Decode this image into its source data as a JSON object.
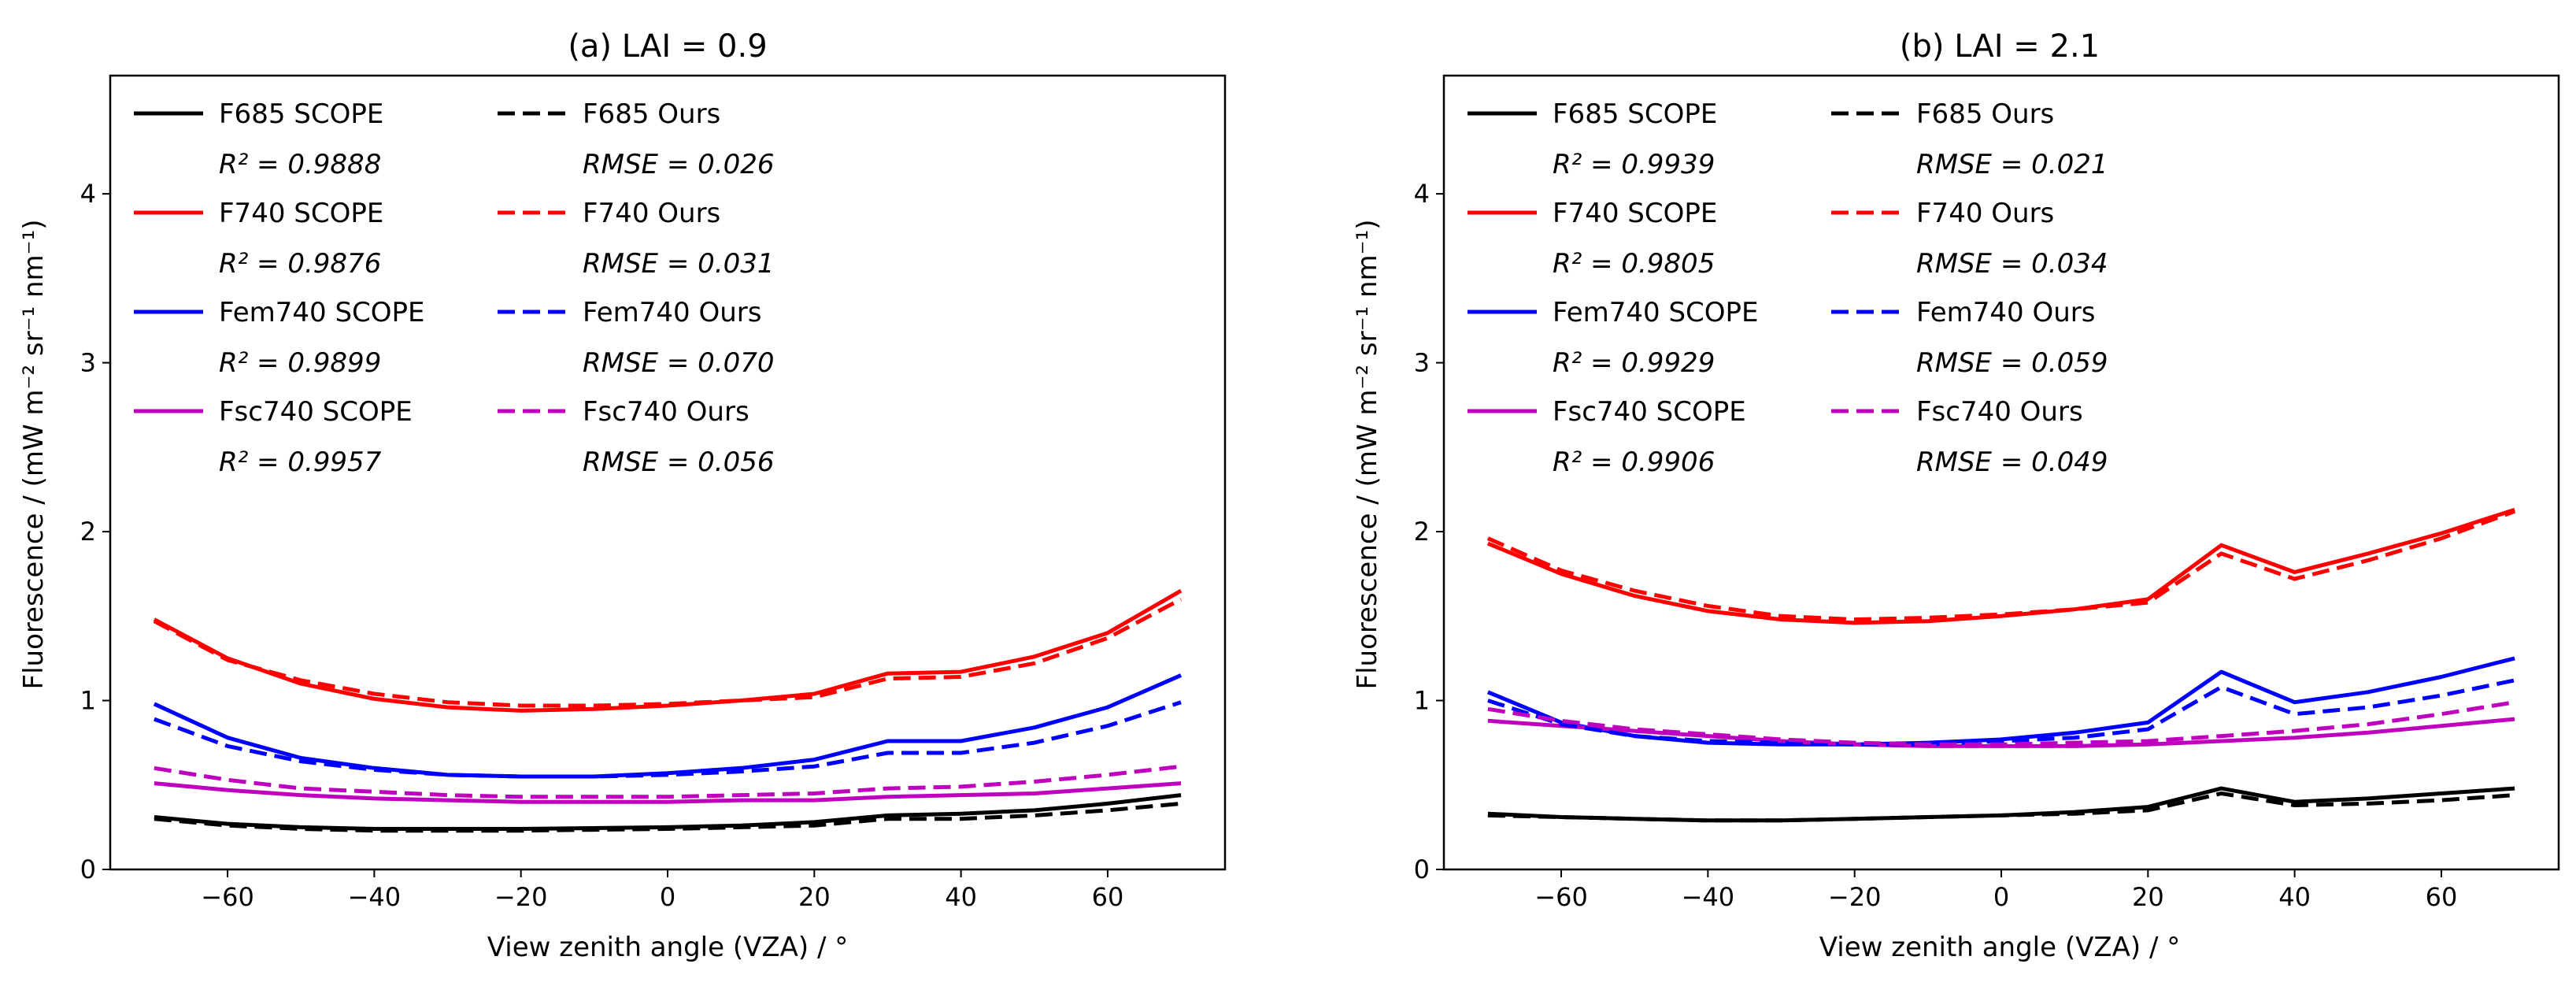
{
  "chart_data": [
    {
      "type": "line",
      "title": "(a) LAI = 0.9",
      "xlabel": "View zenith angle (VZA) / °",
      "ylabel": "Fluorescence / (mW m⁻² sr⁻¹ nm⁻¹)",
      "xlim": [
        -76,
        76
      ],
      "ylim": [
        0,
        4.7
      ],
      "xticks": [
        -60,
        -40,
        -20,
        0,
        20,
        40,
        60
      ],
      "yticks": [
        0,
        1,
        2,
        3,
        4
      ],
      "x": [
        -70,
        -60,
        -50,
        -40,
        -30,
        -20,
        -10,
        0,
        10,
        20,
        30,
        40,
        50,
        60,
        70
      ],
      "series": [
        {
          "name": "F685 SCOPE",
          "color": "#000000",
          "dash": "solid",
          "values": [
            0.31,
            0.27,
            0.25,
            0.24,
            0.24,
            0.24,
            0.245,
            0.25,
            0.26,
            0.28,
            0.32,
            0.33,
            0.35,
            0.39,
            0.44
          ]
        },
        {
          "name": "F740 SCOPE",
          "color": "#ff0000",
          "dash": "solid",
          "values": [
            1.48,
            1.25,
            1.1,
            1.01,
            0.96,
            0.94,
            0.95,
            0.97,
            1.0,
            1.04,
            1.16,
            1.17,
            1.26,
            1.4,
            1.65
          ]
        },
        {
          "name": "Fem740 SCOPE",
          "color": "#0000ff",
          "dash": "solid",
          "values": [
            0.98,
            0.78,
            0.66,
            0.6,
            0.56,
            0.55,
            0.55,
            0.57,
            0.6,
            0.65,
            0.76,
            0.76,
            0.84,
            0.96,
            1.15
          ]
        },
        {
          "name": "Fsc740 SCOPE",
          "color": "#bf00bf",
          "dash": "solid",
          "values": [
            0.51,
            0.47,
            0.44,
            0.42,
            0.41,
            0.4,
            0.4,
            0.4,
            0.41,
            0.41,
            0.43,
            0.44,
            0.45,
            0.48,
            0.51
          ]
        },
        {
          "name": "F685 Ours",
          "color": "#000000",
          "dash": "dashed",
          "values": [
            0.3,
            0.26,
            0.24,
            0.23,
            0.23,
            0.23,
            0.235,
            0.24,
            0.25,
            0.26,
            0.3,
            0.3,
            0.32,
            0.35,
            0.39
          ]
        },
        {
          "name": "F740 Ours",
          "color": "#ff0000",
          "dash": "dashed",
          "values": [
            1.47,
            1.24,
            1.12,
            1.04,
            0.99,
            0.97,
            0.97,
            0.98,
            1.0,
            1.02,
            1.13,
            1.14,
            1.22,
            1.37,
            1.6
          ]
        },
        {
          "name": "Fem740 Ours",
          "color": "#0000ff",
          "dash": "dashed",
          "values": [
            0.89,
            0.73,
            0.64,
            0.59,
            0.56,
            0.55,
            0.55,
            0.56,
            0.58,
            0.61,
            0.69,
            0.69,
            0.75,
            0.85,
            0.99
          ]
        },
        {
          "name": "Fsc740 Ours",
          "color": "#bf00bf",
          "dash": "dashed",
          "values": [
            0.6,
            0.53,
            0.48,
            0.46,
            0.44,
            0.43,
            0.43,
            0.43,
            0.44,
            0.45,
            0.48,
            0.49,
            0.52,
            0.56,
            0.61
          ]
        }
      ],
      "legend": {
        "placement": "upper-left",
        "left_column": [
          {
            "label": "F685 SCOPE",
            "stat": "R² = 0.9888"
          },
          {
            "label": "F740 SCOPE",
            "stat": "R² = 0.9876"
          },
          {
            "label": "Fem740 SCOPE",
            "stat": "R² = 0.9899"
          },
          {
            "label": "Fsc740 SCOPE",
            "stat": "R² = 0.9957"
          }
        ],
        "right_column": [
          {
            "label": "F685 Ours",
            "stat": "RMSE = 0.026"
          },
          {
            "label": "F740 Ours",
            "stat": "RMSE = 0.031"
          },
          {
            "label": "Fem740 Ours",
            "stat": "RMSE = 0.070"
          },
          {
            "label": "Fsc740 Ours",
            "stat": "RMSE = 0.056"
          }
        ]
      }
    },
    {
      "type": "line",
      "title": "(b) LAI = 2.1",
      "xlabel": "View zenith angle (VZA) / °",
      "ylabel": "Fluorescence / (mW m⁻² sr⁻¹ nm⁻¹)",
      "xlim": [
        -76,
        76
      ],
      "ylim": [
        0,
        4.7
      ],
      "xticks": [
        -60,
        -40,
        -20,
        0,
        20,
        40,
        60
      ],
      "yticks": [
        0,
        1,
        2,
        3,
        4
      ],
      "x": [
        -70,
        -60,
        -50,
        -40,
        -30,
        -20,
        -10,
        0,
        10,
        20,
        30,
        40,
        50,
        60,
        70
      ],
      "series": [
        {
          "name": "F685 SCOPE",
          "color": "#000000",
          "dash": "solid",
          "values": [
            0.33,
            0.31,
            0.3,
            0.29,
            0.29,
            0.3,
            0.31,
            0.32,
            0.34,
            0.37,
            0.48,
            0.4,
            0.42,
            0.45,
            0.48
          ]
        },
        {
          "name": "F740 SCOPE",
          "color": "#ff0000",
          "dash": "solid",
          "values": [
            1.93,
            1.75,
            1.62,
            1.53,
            1.48,
            1.46,
            1.47,
            1.5,
            1.54,
            1.6,
            1.92,
            1.76,
            1.87,
            1.99,
            2.13
          ]
        },
        {
          "name": "Fem740 SCOPE",
          "color": "#0000ff",
          "dash": "solid",
          "values": [
            1.05,
            0.87,
            0.79,
            0.75,
            0.74,
            0.74,
            0.75,
            0.77,
            0.81,
            0.87,
            1.17,
            0.99,
            1.05,
            1.14,
            1.25
          ]
        },
        {
          "name": "Fsc740 SCOPE",
          "color": "#bf00bf",
          "dash": "solid",
          "values": [
            0.88,
            0.85,
            0.82,
            0.79,
            0.76,
            0.74,
            0.73,
            0.73,
            0.73,
            0.74,
            0.76,
            0.78,
            0.81,
            0.85,
            0.89
          ]
        },
        {
          "name": "F685 Ours",
          "color": "#000000",
          "dash": "dashed",
          "values": [
            0.32,
            0.31,
            0.3,
            0.29,
            0.29,
            0.3,
            0.31,
            0.32,
            0.33,
            0.35,
            0.45,
            0.38,
            0.39,
            0.41,
            0.44
          ]
        },
        {
          "name": "F740 Ours",
          "color": "#ff0000",
          "dash": "dashed",
          "values": [
            1.96,
            1.77,
            1.65,
            1.56,
            1.5,
            1.48,
            1.49,
            1.51,
            1.54,
            1.58,
            1.87,
            1.72,
            1.83,
            1.96,
            2.12
          ]
        },
        {
          "name": "Fem740 Ours",
          "color": "#0000ff",
          "dash": "dashed",
          "values": [
            1.0,
            0.86,
            0.79,
            0.76,
            0.75,
            0.74,
            0.74,
            0.76,
            0.78,
            0.83,
            1.08,
            0.92,
            0.96,
            1.03,
            1.12
          ]
        },
        {
          "name": "Fsc740 Ours",
          "color": "#bf00bf",
          "dash": "dashed",
          "values": [
            0.95,
            0.88,
            0.83,
            0.8,
            0.77,
            0.75,
            0.74,
            0.74,
            0.75,
            0.76,
            0.79,
            0.82,
            0.86,
            0.92,
            0.99
          ]
        }
      ],
      "legend": {
        "placement": "upper-left",
        "left_column": [
          {
            "label": "F685 SCOPE",
            "stat": "R² = 0.9939"
          },
          {
            "label": "F740 SCOPE",
            "stat": "R² = 0.9805"
          },
          {
            "label": "Fem740 SCOPE",
            "stat": "R² = 0.9929"
          },
          {
            "label": "Fsc740 SCOPE",
            "stat": "R² = 0.9906"
          }
        ],
        "right_column": [
          {
            "label": "F685 Ours",
            "stat": "RMSE = 0.021"
          },
          {
            "label": "F740 Ours",
            "stat": "RMSE = 0.034"
          },
          {
            "label": "Fem740 Ours",
            "stat": "RMSE = 0.059"
          },
          {
            "label": "Fsc740 Ours",
            "stat": "RMSE = 0.049"
          }
        ]
      }
    }
  ]
}
